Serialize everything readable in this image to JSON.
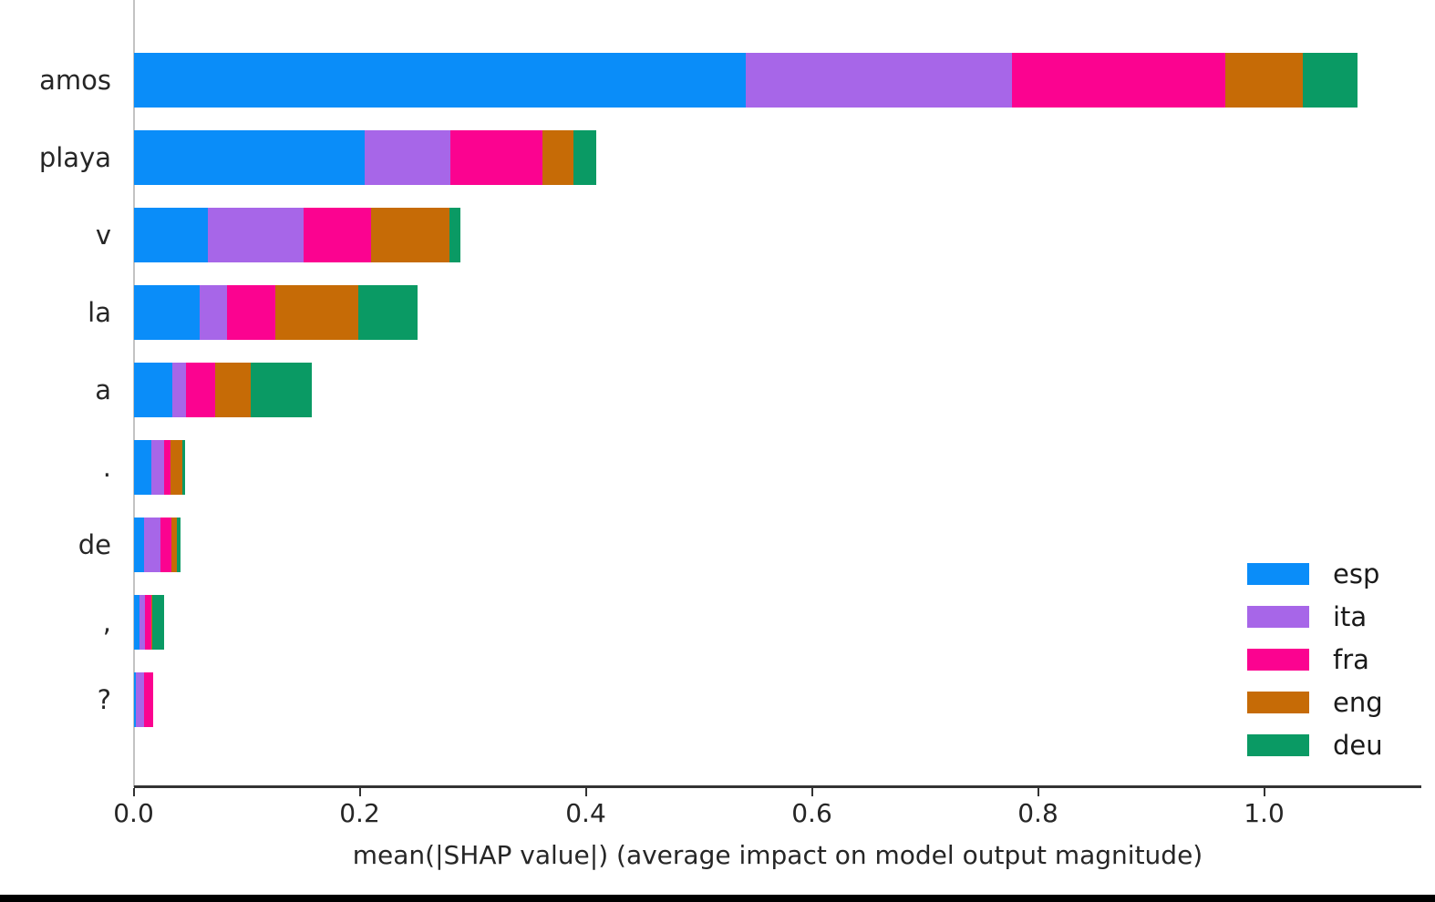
{
  "chart_data": {
    "type": "bar",
    "orientation": "horizontal",
    "stacked": true,
    "title": "",
    "xlabel": "mean(|SHAP value|) (average impact on model output magnitude)",
    "ylabel": "",
    "categories": [
      "amos",
      "playa",
      "v",
      "la",
      "a",
      ".",
      "de",
      ",",
      "?"
    ],
    "series": [
      {
        "name": "esp",
        "color": "#0a8df9",
        "values": [
          0.541,
          0.204,
          0.065,
          0.058,
          0.034,
          0.015,
          0.009,
          0.005,
          0.002
        ]
      },
      {
        "name": "ita",
        "color": "#a766e8",
        "values": [
          0.236,
          0.076,
          0.085,
          0.024,
          0.012,
          0.012,
          0.014,
          0.005,
          0.007
        ]
      },
      {
        "name": "fra",
        "color": "#fb0390",
        "values": [
          0.188,
          0.081,
          0.06,
          0.043,
          0.026,
          0.005,
          0.01,
          0.005,
          0.008
        ]
      },
      {
        "name": "eng",
        "color": "#c66b06",
        "values": [
          0.069,
          0.028,
          0.069,
          0.073,
          0.031,
          0.011,
          0.005,
          0.001,
          0.0
        ]
      },
      {
        "name": "deu",
        "color": "#0a9a64",
        "values": [
          0.048,
          0.02,
          0.01,
          0.053,
          0.054,
          0.002,
          0.003,
          0.011,
          0.0
        ]
      }
    ],
    "legend_entries": [
      "esp",
      "ita",
      "fra",
      "eng",
      "deu"
    ],
    "legend_position": "lower right",
    "xticks": [
      0.0,
      0.2,
      0.4,
      0.6,
      0.8,
      1.0
    ],
    "xtick_labels": [
      "0.0",
      "0.2",
      "0.4",
      "0.6",
      "0.8",
      "1.0"
    ],
    "xlim": [
      0,
      1.138
    ],
    "grid": false,
    "axis_color": "#333333",
    "text_color": "#262626"
  }
}
